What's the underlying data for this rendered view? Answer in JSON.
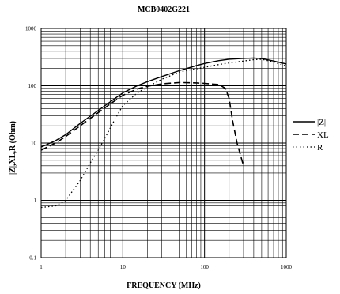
{
  "chart_data": {
    "type": "line",
    "title": "MCB0402G221",
    "xlabel": "FREQUENCY (MHz)",
    "ylabel": "|Z|,XL,R (Ohm)",
    "x_scale": "log",
    "y_scale": "log",
    "xlim": [
      1,
      1000
    ],
    "ylim": [
      0.1,
      1000
    ],
    "x_ticks": [
      {
        "value": 1,
        "label": "1"
      },
      {
        "value": 10,
        "label": "10"
      },
      {
        "value": 100,
        "label": "100"
      },
      {
        "value": 1000,
        "label": "1000"
      }
    ],
    "y_ticks": [
      {
        "value": 0.1,
        "label": "0.1"
      },
      {
        "value": 1,
        "label": "1"
      },
      {
        "value": 10,
        "label": "10"
      },
      {
        "value": 100,
        "label": "100"
      },
      {
        "value": 1000,
        "label": "1000"
      }
    ],
    "grid": true,
    "legend": "right",
    "series": [
      {
        "name": "|Z|",
        "style": "solid",
        "x": [
          1,
          1.5,
          2,
          3,
          5,
          8,
          10,
          15,
          20,
          30,
          50,
          80,
          100,
          150,
          200,
          300,
          400,
          500,
          700,
          1000
        ],
        "y": [
          8.5,
          11,
          14,
          22,
          37,
          60,
          75,
          100,
          118,
          145,
          185,
          225,
          245,
          275,
          290,
          300,
          305,
          298,
          270,
          240
        ]
      },
      {
        "name": "XL",
        "style": "dashed",
        "x": [
          1,
          1.5,
          2,
          3,
          5,
          8,
          10,
          15,
          20,
          30,
          50,
          80,
          100,
          150,
          180,
          200,
          220,
          250,
          300
        ],
        "y": [
          7.5,
          10,
          13,
          20,
          34,
          55,
          68,
          88,
          98,
          108,
          114,
          112,
          110,
          105,
          90,
          60,
          25,
          10,
          4
        ]
      },
      {
        "name": "R",
        "style": "dotted",
        "x": [
          1,
          1.5,
          2,
          3,
          4,
          5,
          6,
          8,
          10,
          15,
          20,
          30,
          50,
          100,
          150,
          200,
          300,
          400,
          500,
          700,
          1000
        ],
        "y": [
          0.75,
          0.8,
          1.0,
          2.2,
          4.5,
          7.5,
          12,
          26,
          45,
          75,
          95,
          130,
          175,
          210,
          235,
          250,
          270,
          285,
          290,
          260,
          220
        ]
      }
    ]
  }
}
